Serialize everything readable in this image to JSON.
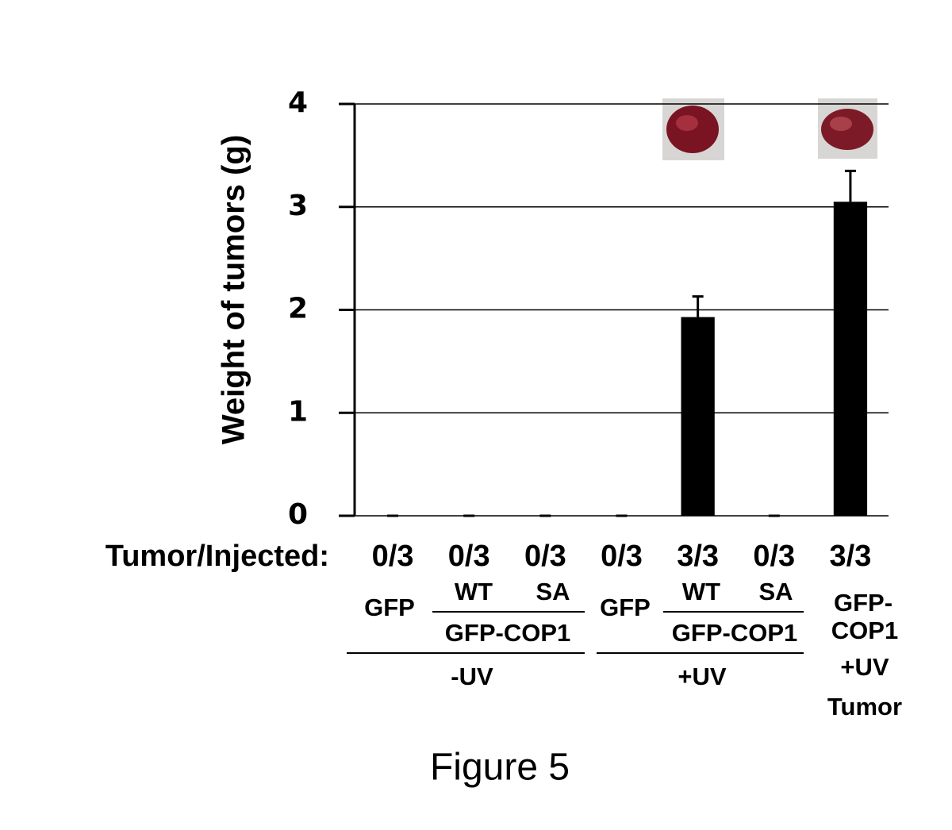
{
  "chart_data": {
    "type": "bar",
    "y_label": "Weight of tumors (g)",
    "x_label": "Tumor/Injected:",
    "categories": [
      "0/3",
      "0/3",
      "0/3",
      "0/3",
      "3/3",
      "0/3",
      "3/3"
    ],
    "values": [
      0,
      0,
      0,
      0,
      1.93,
      0,
      3.05
    ],
    "errors": [
      0,
      0,
      0,
      0,
      0.2,
      0,
      0.3
    ],
    "color": "#000000",
    "ylim": [
      0,
      4
    ],
    "yticks": [
      0,
      1,
      2,
      3,
      4
    ],
    "grid": true,
    "annotations": [
      "GFP",
      "WT",
      "SA",
      "GFP-COP1",
      "-UV",
      "GFP",
      "WT",
      "SA",
      "GFP-COP1",
      "+UV",
      "GFP-",
      "COP1",
      "+UV",
      "Tumor"
    ],
    "caption": "Figure 5"
  }
}
